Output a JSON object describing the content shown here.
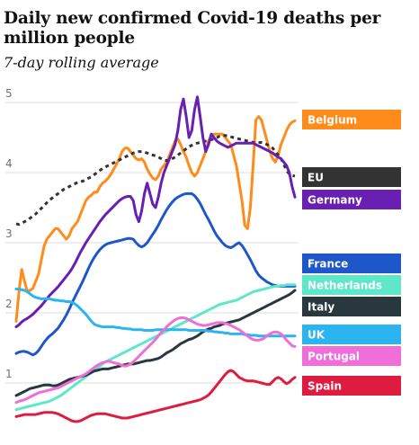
{
  "header": {
    "title": "Daily new confirmed Covid-19 deaths per million people",
    "subtitle": "7-day rolling average"
  },
  "chart_data": {
    "type": "line",
    "title": "Daily new confirmed Covid-19 deaths per million people",
    "subtitle": "7-day rolling average",
    "xlabel": "",
    "ylabel": "",
    "ylim": [
      0.5,
      5.1
    ],
    "yticks": [
      1,
      2,
      3,
      4,
      5
    ],
    "grid": true,
    "legend": "right, labels at line ends",
    "x": [
      0,
      1,
      2,
      3,
      4,
      5,
      6,
      7,
      8,
      9,
      10,
      11,
      12,
      13,
      14,
      15,
      16,
      17,
      18,
      19,
      20,
      21,
      22,
      23,
      24,
      25,
      26,
      27,
      28,
      29,
      30,
      31,
      32,
      33,
      34,
      35,
      36,
      37,
      38,
      39,
      40,
      41,
      42,
      43,
      44,
      45,
      46,
      47,
      48,
      49,
      50,
      51,
      52,
      53,
      54,
      55,
      56,
      57,
      58,
      59,
      60,
      61,
      62,
      63,
      64,
      65,
      66,
      67,
      68,
      69,
      70,
      71,
      72,
      73,
      74,
      75,
      76,
      77,
      78,
      79,
      80,
      81,
      82,
      83,
      84,
      85,
      86,
      87,
      88,
      89,
      90,
      91,
      92,
      93,
      94,
      95,
      96,
      97,
      98,
      99,
      100
    ],
    "series": [
      {
        "name": "Belgium",
        "color": "#ff8c1a",
        "values": [
          1.88,
          2.3,
          2.62,
          2.45,
          2.3,
          2.32,
          2.35,
          2.45,
          2.55,
          2.75,
          2.95,
          3.05,
          3.1,
          3.15,
          3.2,
          3.2,
          3.15,
          3.1,
          3.05,
          3.1,
          3.2,
          3.25,
          3.3,
          3.4,
          3.5,
          3.6,
          3.65,
          3.68,
          3.72,
          3.72,
          3.8,
          3.85,
          3.88,
          3.92,
          3.98,
          4.05,
          4.12,
          4.2,
          4.3,
          4.35,
          4.35,
          4.3,
          4.25,
          4.2,
          4.18,
          4.2,
          4.15,
          4.05,
          3.98,
          3.92,
          3.9,
          3.95,
          4.05,
          4.1,
          4.15,
          4.25,
          4.35,
          4.45,
          4.48,
          4.4,
          4.3,
          4.22,
          4.1,
          4.0,
          3.95,
          4.0,
          4.1,
          4.2,
          4.3,
          4.45,
          4.52,
          4.55,
          4.55,
          4.55,
          4.55,
          4.5,
          4.45,
          4.4,
          4.25,
          4.1,
          3.85,
          3.6,
          3.25,
          3.2,
          3.5,
          4.1,
          4.75,
          4.8,
          4.75,
          4.6,
          4.45,
          4.3,
          4.2,
          4.15,
          4.25,
          4.4,
          4.5,
          4.6,
          4.68,
          4.72,
          4.74
        ]
      },
      {
        "name": "EU",
        "color": "#333333",
        "dashed": true,
        "values": [
          3.27,
          3.26,
          3.28,
          3.3,
          3.32,
          3.35,
          3.38,
          3.41,
          3.45,
          3.49,
          3.53,
          3.57,
          3.61,
          3.64,
          3.67,
          3.7,
          3.73,
          3.76,
          3.78,
          3.8,
          3.82,
          3.84,
          3.86,
          3.87,
          3.88,
          3.9,
          3.92,
          3.94,
          3.97,
          4.0,
          4.03,
          4.06,
          4.08,
          4.1,
          4.12,
          4.14,
          4.16,
          4.18,
          4.2,
          4.22,
          4.24,
          4.26,
          4.28,
          4.29,
          4.3,
          4.3,
          4.29,
          4.28,
          4.26,
          4.25,
          4.24,
          4.22,
          4.2,
          4.18,
          4.17,
          4.18,
          4.2,
          4.22,
          4.25,
          4.28,
          4.31,
          4.34,
          4.37,
          4.39,
          4.41,
          4.42,
          4.43,
          4.44,
          4.45,
          4.46,
          4.47,
          4.48,
          4.5,
          4.52,
          4.53,
          4.53,
          4.52,
          4.51,
          4.5,
          4.49,
          4.48,
          4.47,
          4.46,
          4.45,
          4.44,
          4.43,
          4.43,
          4.43,
          4.43,
          4.42,
          4.4,
          4.38,
          4.35,
          4.3,
          4.25,
          4.2,
          4.12,
          4.03,
          3.98,
          3.96,
          3.95
        ]
      },
      {
        "name": "Germany",
        "color": "#6a1fb3",
        "values": [
          1.8,
          1.83,
          1.87,
          1.9,
          1.92,
          1.95,
          1.98,
          2.02,
          2.06,
          2.1,
          2.15,
          2.2,
          2.25,
          2.29,
          2.33,
          2.37,
          2.42,
          2.47,
          2.52,
          2.57,
          2.63,
          2.7,
          2.78,
          2.86,
          2.93,
          3.0,
          3.06,
          3.12,
          3.18,
          3.24,
          3.3,
          3.35,
          3.4,
          3.44,
          3.48,
          3.52,
          3.56,
          3.6,
          3.63,
          3.65,
          3.66,
          3.66,
          3.6,
          3.4,
          3.3,
          3.45,
          3.7,
          3.85,
          3.7,
          3.55,
          3.5,
          3.65,
          3.85,
          4.0,
          4.1,
          4.2,
          4.3,
          4.4,
          4.6,
          4.9,
          5.05,
          4.8,
          4.5,
          4.6,
          4.9,
          5.08,
          4.8,
          4.5,
          4.3,
          4.4,
          4.55,
          4.5,
          4.45,
          4.42,
          4.4,
          4.38,
          4.36,
          4.38,
          4.4,
          4.42,
          4.42,
          4.42,
          4.42,
          4.42,
          4.42,
          4.42,
          4.4,
          4.38,
          4.36,
          4.34,
          4.32,
          4.3,
          4.28,
          4.25,
          4.22,
          4.2,
          4.15,
          4.1,
          4.0,
          3.8,
          3.65
        ]
      },
      {
        "name": "France",
        "color": "#1d57c9",
        "values": [
          1.42,
          1.44,
          1.45,
          1.45,
          1.44,
          1.42,
          1.4,
          1.42,
          1.46,
          1.52,
          1.58,
          1.63,
          1.67,
          1.7,
          1.74,
          1.78,
          1.84,
          1.9,
          1.97,
          2.05,
          2.14,
          2.22,
          2.3,
          2.38,
          2.46,
          2.55,
          2.64,
          2.72,
          2.79,
          2.85,
          2.9,
          2.94,
          2.97,
          2.99,
          3.0,
          3.01,
          3.02,
          3.03,
          3.04,
          3.05,
          3.06,
          3.06,
          3.05,
          3.0,
          2.96,
          2.94,
          2.96,
          3.0,
          3.06,
          3.12,
          3.18,
          3.25,
          3.33,
          3.4,
          3.47,
          3.53,
          3.58,
          3.62,
          3.65,
          3.67,
          3.69,
          3.7,
          3.7,
          3.7,
          3.67,
          3.62,
          3.56,
          3.48,
          3.4,
          3.33,
          3.25,
          3.17,
          3.1,
          3.05,
          3.0,
          2.96,
          2.94,
          2.93,
          2.95,
          2.98,
          3.0,
          2.96,
          2.9,
          2.83,
          2.76,
          2.68,
          2.6,
          2.54,
          2.5,
          2.47,
          2.44,
          2.42,
          2.4,
          2.39,
          2.38,
          2.38,
          2.38,
          2.38,
          2.38,
          2.38,
          2.38
        ]
      },
      {
        "name": "Netherlands",
        "color": "#5ee8c9",
        "values": [
          0.62,
          0.63,
          0.64,
          0.65,
          0.66,
          0.67,
          0.68,
          0.69,
          0.7,
          0.71,
          0.72,
          0.73,
          0.74,
          0.76,
          0.78,
          0.8,
          0.82,
          0.85,
          0.88,
          0.91,
          0.94,
          0.97,
          1.0,
          1.03,
          1.06,
          1.09,
          1.12,
          1.15,
          1.18,
          1.21,
          1.24,
          1.27,
          1.3,
          1.32,
          1.34,
          1.36,
          1.38,
          1.4,
          1.42,
          1.44,
          1.46,
          1.48,
          1.5,
          1.52,
          1.54,
          1.56,
          1.58,
          1.6,
          1.62,
          1.64,
          1.66,
          1.68,
          1.7,
          1.72,
          1.74,
          1.76,
          1.78,
          1.8,
          1.82,
          1.84,
          1.86,
          1.88,
          1.9,
          1.92,
          1.94,
          1.96,
          1.98,
          2.0,
          2.02,
          2.04,
          2.06,
          2.08,
          2.1,
          2.12,
          2.13,
          2.14,
          2.15,
          2.16,
          2.17,
          2.18,
          2.2,
          2.22,
          2.24,
          2.26,
          2.28,
          2.3,
          2.31,
          2.32,
          2.33,
          2.34,
          2.35,
          2.36,
          2.37,
          2.38,
          2.38,
          2.39,
          2.39,
          2.4,
          2.4,
          2.4,
          2.4
        ]
      },
      {
        "name": "Italy",
        "color": "#29373f",
        "values": [
          0.82,
          0.84,
          0.86,
          0.88,
          0.9,
          0.92,
          0.93,
          0.94,
          0.95,
          0.96,
          0.97,
          0.97,
          0.97,
          0.96,
          0.96,
          0.97,
          0.99,
          1.01,
          1.03,
          1.05,
          1.06,
          1.07,
          1.08,
          1.09,
          1.1,
          1.11,
          1.13,
          1.15,
          1.17,
          1.18,
          1.19,
          1.2,
          1.2,
          1.2,
          1.21,
          1.22,
          1.23,
          1.24,
          1.25,
          1.26,
          1.27,
          1.27,
          1.27,
          1.28,
          1.29,
          1.3,
          1.31,
          1.32,
          1.32,
          1.33,
          1.34,
          1.35,
          1.37,
          1.4,
          1.43,
          1.45,
          1.47,
          1.5,
          1.53,
          1.56,
          1.58,
          1.6,
          1.62,
          1.63,
          1.65,
          1.67,
          1.7,
          1.73,
          1.75,
          1.77,
          1.78,
          1.8,
          1.81,
          1.82,
          1.84,
          1.85,
          1.86,
          1.87,
          1.88,
          1.89,
          1.9,
          1.92,
          1.94,
          1.96,
          1.98,
          2.0,
          2.02,
          2.04,
          2.06,
          2.08,
          2.1,
          2.12,
          2.14,
          2.16,
          2.18,
          2.2,
          2.22,
          2.24,
          2.26,
          2.29,
          2.32
        ]
      },
      {
        "name": "UK",
        "color": "#2ab4f0",
        "values": [
          2.34,
          2.34,
          2.33,
          2.32,
          2.3,
          2.27,
          2.24,
          2.22,
          2.21,
          2.2,
          2.2,
          2.2,
          2.2,
          2.19,
          2.18,
          2.18,
          2.17,
          2.17,
          2.16,
          2.16,
          2.15,
          2.13,
          2.1,
          2.06,
          2.02,
          1.98,
          1.93,
          1.88,
          1.84,
          1.82,
          1.81,
          1.8,
          1.8,
          1.8,
          1.8,
          1.8,
          1.79,
          1.79,
          1.78,
          1.78,
          1.77,
          1.77,
          1.76,
          1.76,
          1.76,
          1.76,
          1.75,
          1.75,
          1.75,
          1.75,
          1.76,
          1.76,
          1.76,
          1.76,
          1.76,
          1.76,
          1.76,
          1.76,
          1.76,
          1.76,
          1.76,
          1.76,
          1.75,
          1.75,
          1.75,
          1.75,
          1.75,
          1.75,
          1.75,
          1.74,
          1.74,
          1.73,
          1.73,
          1.72,
          1.72,
          1.71,
          1.71,
          1.7,
          1.7,
          1.7,
          1.7,
          1.7,
          1.69,
          1.69,
          1.68,
          1.68,
          1.68,
          1.67,
          1.67,
          1.67,
          1.67,
          1.67,
          1.67,
          1.67,
          1.67,
          1.67,
          1.67,
          1.67,
          1.67,
          1.67,
          1.67
        ]
      },
      {
        "name": "Portugal",
        "color": "#ef6ed9",
        "values": [
          0.72,
          0.74,
          0.75,
          0.76,
          0.78,
          0.8,
          0.82,
          0.84,
          0.86,
          0.87,
          0.88,
          0.89,
          0.9,
          0.91,
          0.92,
          0.93,
          0.95,
          0.97,
          0.99,
          1.01,
          1.03,
          1.05,
          1.07,
          1.09,
          1.11,
          1.13,
          1.16,
          1.19,
          1.22,
          1.25,
          1.27,
          1.29,
          1.3,
          1.31,
          1.3,
          1.29,
          1.28,
          1.27,
          1.25,
          1.24,
          1.25,
          1.27,
          1.3,
          1.34,
          1.38,
          1.42,
          1.46,
          1.5,
          1.54,
          1.58,
          1.62,
          1.67,
          1.72,
          1.76,
          1.8,
          1.84,
          1.87,
          1.9,
          1.92,
          1.93,
          1.93,
          1.92,
          1.9,
          1.88,
          1.86,
          1.84,
          1.83,
          1.82,
          1.82,
          1.83,
          1.84,
          1.85,
          1.86,
          1.86,
          1.86,
          1.85,
          1.84,
          1.82,
          1.8,
          1.78,
          1.76,
          1.73,
          1.7,
          1.67,
          1.64,
          1.62,
          1.61,
          1.61,
          1.62,
          1.64,
          1.67,
          1.7,
          1.72,
          1.73,
          1.72,
          1.7,
          1.66,
          1.61,
          1.57,
          1.53,
          1.52
        ]
      },
      {
        "name": "Spain",
        "color": "#dd1c40",
        "values": [
          0.52,
          0.53,
          0.54,
          0.55,
          0.55,
          0.55,
          0.55,
          0.55,
          0.56,
          0.57,
          0.58,
          0.58,
          0.58,
          0.58,
          0.57,
          0.56,
          0.54,
          0.52,
          0.5,
          0.48,
          0.46,
          0.45,
          0.45,
          0.46,
          0.48,
          0.5,
          0.52,
          0.54,
          0.55,
          0.56,
          0.56,
          0.56,
          0.56,
          0.55,
          0.54,
          0.53,
          0.52,
          0.51,
          0.5,
          0.5,
          0.5,
          0.51,
          0.52,
          0.53,
          0.54,
          0.55,
          0.56,
          0.57,
          0.58,
          0.59,
          0.6,
          0.61,
          0.62,
          0.63,
          0.64,
          0.65,
          0.66,
          0.67,
          0.68,
          0.69,
          0.7,
          0.71,
          0.72,
          0.73,
          0.74,
          0.75,
          0.76,
          0.78,
          0.8,
          0.83,
          0.87,
          0.92,
          0.97,
          1.02,
          1.07,
          1.12,
          1.16,
          1.18,
          1.16,
          1.12,
          1.08,
          1.06,
          1.04,
          1.03,
          1.03,
          1.03,
          1.02,
          1.01,
          1.0,
          0.99,
          0.98,
          0.98,
          1.02,
          1.06,
          1.08,
          1.06,
          1.02,
          0.99,
          1.01,
          1.05,
          1.08
        ]
      }
    ]
  }
}
